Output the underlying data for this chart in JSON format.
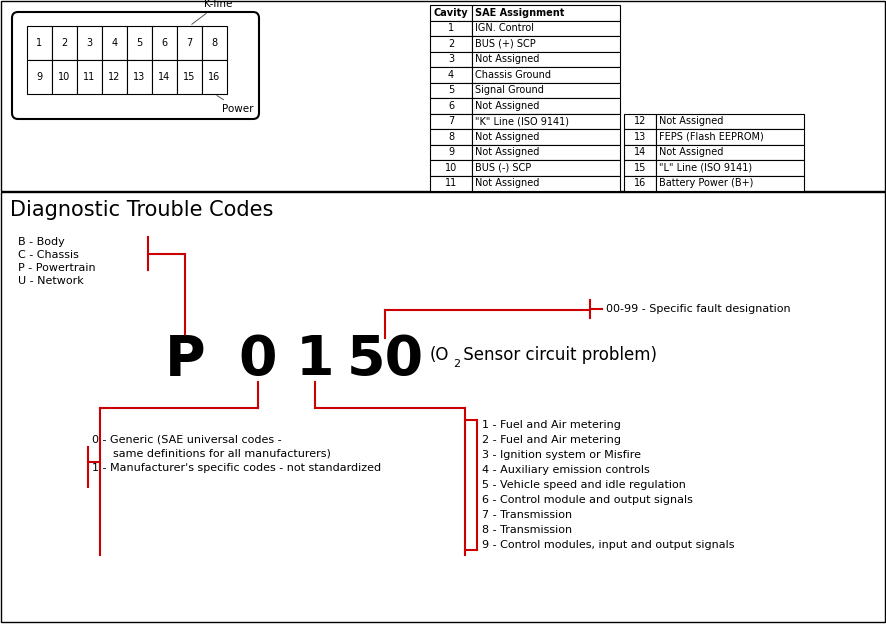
{
  "bg_color": "#ffffff",
  "red_color": "#cc0000",
  "connector_pins_top": [
    "1",
    "2",
    "3",
    "4",
    "5",
    "6",
    "7",
    "8"
  ],
  "connector_pins_bot": [
    "9",
    "10",
    "11",
    "12",
    "13",
    "14",
    "15",
    "16"
  ],
  "table1_data": [
    [
      "Cavity",
      "SAE Assignment"
    ],
    [
      "1",
      "IGN. Control"
    ],
    [
      "2",
      "BUS (+) SCP"
    ],
    [
      "3",
      "Not Assigned"
    ],
    [
      "4",
      "Chassis Ground"
    ],
    [
      "5",
      "Signal Ground"
    ],
    [
      "6",
      "Not Assigned"
    ],
    [
      "7",
      "\"K\" Line (ISO 9141)"
    ],
    [
      "8",
      "Not Assigned"
    ],
    [
      "9",
      "Not Assigned"
    ],
    [
      "10",
      "BUS (-) SCP"
    ],
    [
      "11",
      "Not Assigned"
    ]
  ],
  "table2_data": [
    [
      "12",
      "Not Assigned"
    ],
    [
      "13",
      "FEPS (Flash EEPROM)"
    ],
    [
      "14",
      "Not Assigned"
    ],
    [
      "15",
      "\"L\" Line (ISO 9141)"
    ],
    [
      "16",
      "Battery Power (B+)"
    ]
  ],
  "dtc_title": "Diagnostic Trouble Codes",
  "letters_labels": [
    "B - Body",
    "C - Chassis",
    "P - Powertrain",
    "U - Network"
  ],
  "second_digit_labels": [
    "0 - Generic (SAE universal codes -",
    "      same definitions for all manufacturers)",
    "1 - Manufacturer's specific codes - not standardized"
  ],
  "third_digit_labels": [
    "1 - Fuel and Air metering",
    "2 - Fuel and Air metering",
    "3 - Ignition system or Misfire",
    "4 - Auxiliary emission controls",
    "5 - Vehicle speed and idle regulation",
    "6 - Control module and output signals",
    "7 - Transmission",
    "8 - Transmission",
    "9 - Control modules, input and output signals"
  ],
  "last_digits_label": "00-99 - Specific fault designation"
}
